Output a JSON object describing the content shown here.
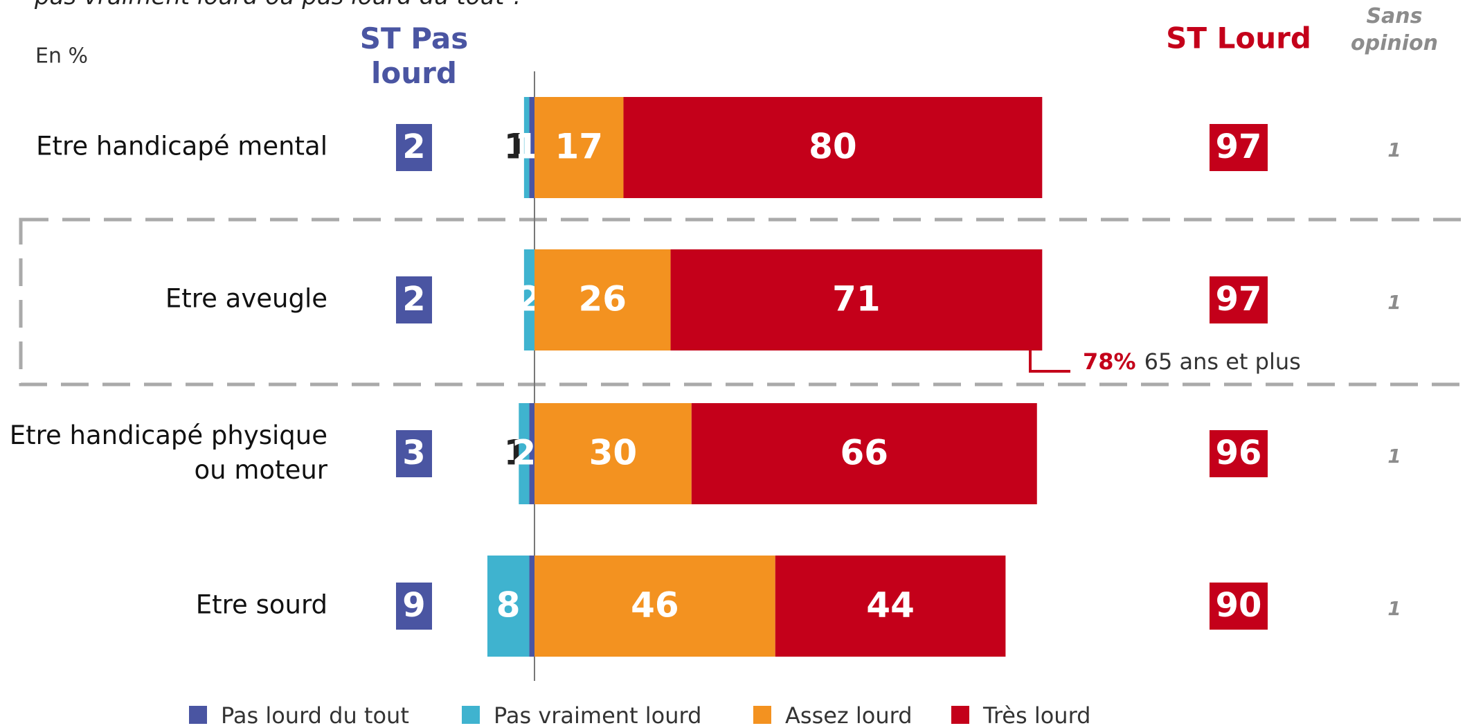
{
  "chart_data": {
    "type": "diverging-bar",
    "question": "pas vraiment lourd ou pas lourd du tout ?",
    "unit_label": "En %",
    "left_total_header": "ST Pas lourd",
    "right_total_header": "ST Lourd",
    "no_opinion_header": "Sans opinion",
    "categories": [
      "Etre handicapé mental",
      "Etre aveugle",
      "Etre handicapé physique ou moteur",
      "Etre sourd"
    ],
    "series": [
      {
        "name": "Pas lourd du tout",
        "color": "#4a55a2",
        "side": "left",
        "values": [
          1,
          null,
          1,
          1
        ]
      },
      {
        "name": "Pas vraiment lourd",
        "color": "#3fb3cf",
        "side": "left",
        "values": [
          1,
          2,
          2,
          8
        ]
      },
      {
        "name": "Assez lourd",
        "color": "#f39220",
        "side": "right",
        "values": [
          17,
          26,
          30,
          46
        ]
      },
      {
        "name": "Très lourd",
        "color": "#c4001a",
        "side": "right",
        "values": [
          80,
          71,
          66,
          44
        ]
      }
    ],
    "left_totals": [
      2,
      2,
      3,
      9
    ],
    "right_totals": [
      97,
      97,
      96,
      90
    ],
    "no_opinion": [
      1,
      1,
      1,
      1
    ],
    "annotation": {
      "category": 1,
      "value": 78,
      "value_label": "78%",
      "text": "65 ans et plus"
    }
  }
}
